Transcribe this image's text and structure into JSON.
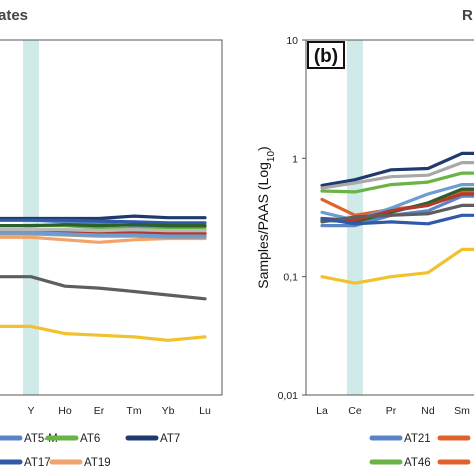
{
  "chart_data": [
    {
      "type": "line",
      "title": "ates",
      "categories": [
        "Y",
        "Ho",
        "Er",
        "Tm",
        "Yb",
        "Lu"
      ],
      "highlight_category": "Y",
      "colors": {
        "highlight_band": "#cfeae8",
        "frame": "#555555"
      },
      "series": [
        {
          "name": "AT5-M",
          "color": "#5b84c4",
          "values": [
            0.3,
            0.29,
            0.28,
            0.27,
            0.265,
            0.265
          ]
        },
        {
          "name": "AT6",
          "color": "#6ab345",
          "values": [
            0.27,
            0.27,
            0.26,
            0.255,
            0.25,
            0.25
          ]
        },
        {
          "name": "AT7",
          "color": "#1f3a6e",
          "values": [
            0.31,
            0.31,
            0.31,
            0.325,
            0.315,
            0.315
          ]
        },
        {
          "name": "AT17",
          "color": "#2e5aa6",
          "values": [
            0.3,
            0.3,
            0.295,
            0.29,
            0.285,
            0.285
          ]
        },
        {
          "name": "AT19",
          "color": "#f2a36b",
          "values": [
            0.215,
            0.205,
            0.195,
            0.205,
            0.21,
            0.21
          ]
        },
        {
          "color": "#2b5f2b",
          "values": [
            0.27,
            0.275,
            0.27,
            0.275,
            0.27,
            0.27
          ]
        },
        {
          "color": "#e0622a",
          "values": [
            0.245,
            0.245,
            0.24,
            0.24,
            0.235,
            0.235
          ]
        },
        {
          "color": "#b03a2e",
          "values": [
            0.24,
            0.235,
            0.23,
            0.235,
            0.23,
            0.23
          ]
        },
        {
          "color": "#9a9a9a",
          "values": [
            0.23,
            0.225,
            0.22,
            0.22,
            0.215,
            0.215
          ]
        },
        {
          "color": "#b8b8b8",
          "values": [
            0.25,
            0.25,
            0.245,
            0.25,
            0.245,
            0.245
          ]
        },
        {
          "color": "#6a9dd4",
          "values": [
            0.235,
            0.23,
            0.225,
            0.225,
            0.22,
            0.22
          ]
        },
        {
          "color": "#5e5e5e",
          "values": [
            0.1,
            0.083,
            0.08,
            0.075,
            0.07,
            0.065
          ]
        },
        {
          "color": "#f2c12e",
          "values": [
            0.038,
            0.033,
            0.032,
            0.031,
            0.029,
            0.031
          ]
        }
      ]
    },
    {
      "type": "line",
      "title": "R",
      "panel_label": "(b)",
      "ylabel": "Samples/PAAS (Log10)",
      "yscale": "log",
      "ylim": [
        0.01,
        10
      ],
      "yticks": [
        "0,01",
        "0,1",
        "1",
        "10"
      ],
      "categories": [
        "La",
        "Ce",
        "Pr",
        "Nd",
        "Sm"
      ],
      "highlight_category": "Ce",
      "colors": {
        "highlight_band": "#cfeae8",
        "frame": "#555555"
      },
      "series": [
        {
          "name": "AT21",
          "color": "#5b84c4",
          "values": [
            0.27,
            0.27,
            0.33,
            0.36,
            0.48
          ]
        },
        {
          "color": "#e0622a",
          "values": [
            0.45,
            0.33,
            0.37,
            0.4,
            0.52
          ]
        },
        {
          "name": "AT46",
          "color": "#6ab345",
          "values": [
            0.53,
            0.52,
            0.6,
            0.63,
            0.75
          ]
        },
        {
          "color": "#1f3a6e",
          "values": [
            0.59,
            0.66,
            0.8,
            0.82,
            1.1
          ]
        },
        {
          "color": "#a8a8a8",
          "values": [
            0.56,
            0.62,
            0.7,
            0.72,
            0.92
          ]
        },
        {
          "color": "#6a9dd4",
          "values": [
            0.35,
            0.3,
            0.38,
            0.5,
            0.6
          ]
        },
        {
          "color": "#2b5f2b",
          "values": [
            0.3,
            0.29,
            0.35,
            0.42,
            0.55
          ]
        },
        {
          "color": "#b03a2e",
          "values": [
            0.31,
            0.3,
            0.36,
            0.4,
            0.5
          ]
        },
        {
          "color": "#5e5e5e",
          "values": [
            0.29,
            0.32,
            0.33,
            0.34,
            0.4
          ]
        },
        {
          "color": "#2e5aa6",
          "values": [
            0.31,
            0.28,
            0.29,
            0.28,
            0.33
          ]
        },
        {
          "color": "#f2c12e",
          "values": [
            0.1,
            0.088,
            0.1,
            0.108,
            0.17
          ]
        }
      ]
    }
  ],
  "legend_rows": [
    [
      {
        "label": "AT5-M",
        "color": "#5b84c4"
      },
      {
        "label": "AT6",
        "color": "#6ab345"
      },
      {
        "label": "AT7",
        "color": "#1f3a6e"
      },
      {
        "label": "AT21",
        "color": "#5b84c4"
      },
      {
        "label": "",
        "color": "#e0622a"
      }
    ],
    [
      {
        "label": "AT17",
        "color": "#2e5aa6"
      },
      {
        "label": "AT19",
        "color": "#f2a36b"
      },
      {
        "label": "AT46",
        "color": "#6ab345"
      },
      {
        "label": "",
        "color": "#e0622a"
      }
    ]
  ]
}
